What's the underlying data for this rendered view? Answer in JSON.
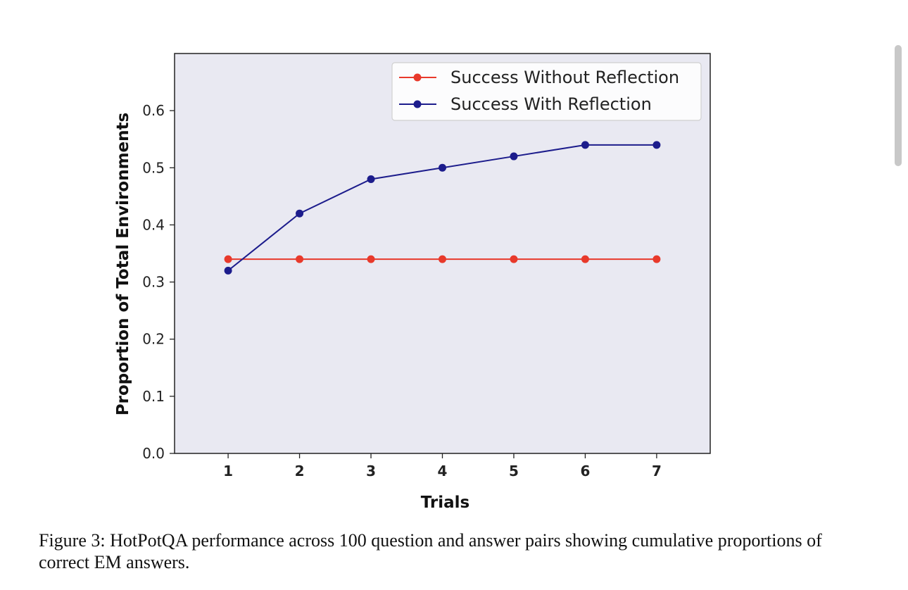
{
  "chart_data": {
    "type": "line",
    "xlabel": "Trials",
    "ylabel": "Proportion of Total Environments",
    "x": [
      1,
      2,
      3,
      4,
      5,
      6,
      7
    ],
    "xlim": [
      0.25,
      7.75
    ],
    "ylim": [
      0.0,
      0.7
    ],
    "yticks": [
      0.0,
      0.1,
      0.2,
      0.3,
      0.4,
      0.5,
      0.6
    ],
    "ytick_labels": [
      "0.0",
      "0.1",
      "0.2",
      "0.3",
      "0.4",
      "0.5",
      "0.6"
    ],
    "xtick_labels": [
      "1",
      "2",
      "3",
      "4",
      "5",
      "6",
      "7"
    ],
    "grid": false,
    "legend_position": "top-right",
    "background_color": "#e9e9f2",
    "series": [
      {
        "name": "Success Without Reflection",
        "color": "#e8392b",
        "values": [
          0.34,
          0.34,
          0.34,
          0.34,
          0.34,
          0.34,
          0.34
        ]
      },
      {
        "name": "Success With Reflection",
        "color": "#1c1c8c",
        "values": [
          0.32,
          0.42,
          0.48,
          0.5,
          0.52,
          0.54,
          0.54
        ]
      }
    ]
  },
  "caption": "Figure 3: HotPotQA performance across 100 question and answer pairs showing cumulative proportions of correct EM answers."
}
